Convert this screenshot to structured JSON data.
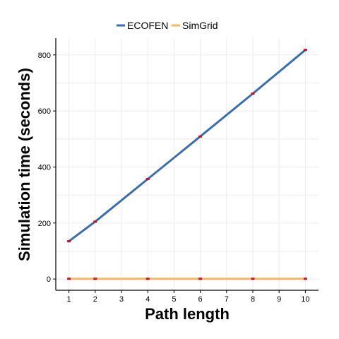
{
  "chart_data": {
    "type": "line",
    "title": "",
    "xlabel": "Path length",
    "ylabel": "Simulation time (seconds)",
    "x": [
      1,
      2,
      4,
      6,
      8,
      10
    ],
    "xlim": [
      0.5,
      10.5
    ],
    "ylim": [
      -40,
      860
    ],
    "xticks": [
      1,
      2,
      3,
      4,
      5,
      6,
      7,
      8,
      9,
      10
    ],
    "yticks": [
      0,
      200,
      400,
      600,
      800
    ],
    "grid": true,
    "legend_position": "top",
    "marker_color": "#c8102e",
    "series": [
      {
        "name": "ECOFEN",
        "color": "#3a6ea8",
        "values": [
          135,
          205,
          357,
          509,
          662,
          818
        ]
      },
      {
        "name": "SimGrid",
        "color": "#f7b662",
        "values": [
          1,
          1,
          1,
          1,
          1,
          1
        ]
      }
    ]
  }
}
